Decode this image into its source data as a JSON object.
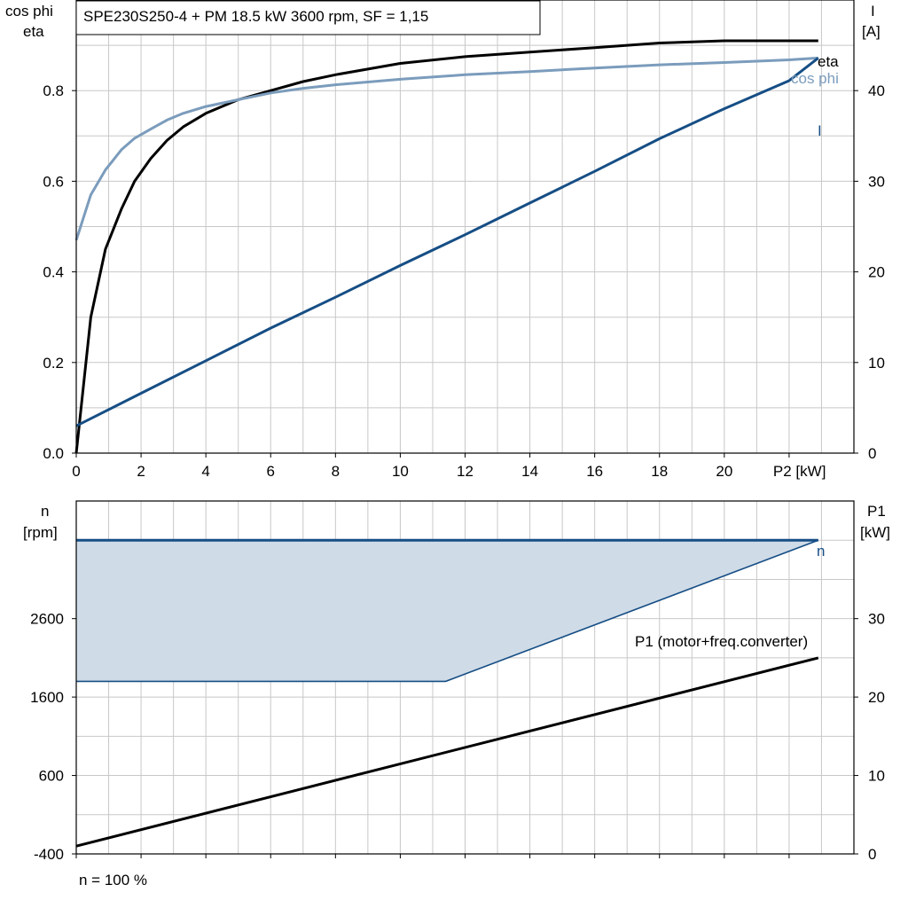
{
  "title": "SPE230S250-4 + PM   18.5 kW   3600 rpm, SF = 1,15",
  "footer": "n = 100 %",
  "colors": {
    "eta": "#000000",
    "cos_phi": "#7b9cbc",
    "current": "#164e85",
    "speed": "#164e85",
    "speed_fill": "#cfdbe7",
    "p1": "#000000"
  },
  "chart_data": [
    {
      "type": "line",
      "xlabel": "P2 [kW]",
      "ylabel_left": [
        "cos phi",
        "eta"
      ],
      "ylabel_right": [
        "I",
        "[A]"
      ],
      "xlim": [
        0,
        24
      ],
      "ylim_left": [
        0,
        1.0
      ],
      "ylim_right": [
        0,
        50
      ],
      "x_ticks": [
        "0",
        "2",
        "4",
        "6",
        "8",
        "10",
        "12",
        "14",
        "16",
        "18",
        "20",
        "P2 [kW]"
      ],
      "y_ticks_left": [
        "0.0",
        "0.2",
        "0.4",
        "0.6",
        "0.8"
      ],
      "y_ticks_right": [
        "0",
        "10",
        "20",
        "30",
        "40"
      ],
      "grid": true,
      "series": [
        {
          "name": "eta",
          "axis": "left",
          "x": [
            0,
            0.45,
            0.9,
            1.4,
            1.8,
            2.3,
            2.8,
            3.3,
            4,
            5,
            6,
            7,
            8,
            10,
            12,
            14,
            16,
            18,
            20,
            22,
            22.9
          ],
          "y": [
            0.0,
            0.3,
            0.45,
            0.54,
            0.6,
            0.65,
            0.69,
            0.72,
            0.75,
            0.78,
            0.8,
            0.82,
            0.835,
            0.86,
            0.875,
            0.885,
            0.895,
            0.905,
            0.91,
            0.91,
            0.91
          ]
        },
        {
          "name": "cos phi",
          "axis": "left",
          "x": [
            0,
            0.45,
            0.9,
            1.4,
            1.8,
            2.3,
            2.8,
            3.3,
            4,
            5,
            6,
            7,
            8,
            10,
            12,
            14,
            16,
            18,
            20,
            22,
            22.9
          ],
          "y": [
            0.47,
            0.57,
            0.625,
            0.67,
            0.695,
            0.715,
            0.735,
            0.75,
            0.765,
            0.78,
            0.795,
            0.805,
            0.813,
            0.825,
            0.835,
            0.842,
            0.85,
            0.857,
            0.862,
            0.868,
            0.872
          ]
        },
        {
          "name": "I",
          "axis": "right",
          "x": [
            0,
            2,
            4,
            6,
            8,
            10,
            12,
            14,
            16,
            18,
            20,
            22,
            22.9
          ],
          "y": [
            3.0,
            6.6,
            10.2,
            13.8,
            17.2,
            20.7,
            24.1,
            27.6,
            31.1,
            34.7,
            38.0,
            41.1,
            43.6
          ]
        }
      ]
    },
    {
      "type": "area",
      "ylabel_left": [
        "n",
        "[rpm]"
      ],
      "ylabel_right": [
        "P1",
        "[kW]"
      ],
      "xlim": [
        0,
        24
      ],
      "ylim_left": [
        -400,
        4100
      ],
      "ylim_right": [
        0,
        45
      ],
      "y_ticks_left": [
        "-400",
        "600",
        "1600",
        "2600"
      ],
      "y_ticks_right": [
        "0",
        "10",
        "20",
        "30"
      ],
      "grid": true,
      "series": [
        {
          "name": "n",
          "axis": "left",
          "x": [
            0,
            22.9
          ],
          "y": [
            3600,
            3600
          ]
        },
        {
          "name": "n_min_boundary",
          "axis": "left",
          "x": [
            0,
            11.4,
            22.9
          ],
          "y": [
            1800,
            1800,
            3600
          ]
        },
        {
          "name": "P1 (motor+freq.converter)",
          "axis": "right",
          "x": [
            0,
            22.9
          ],
          "y": [
            1.0,
            25.0
          ]
        }
      ]
    }
  ]
}
